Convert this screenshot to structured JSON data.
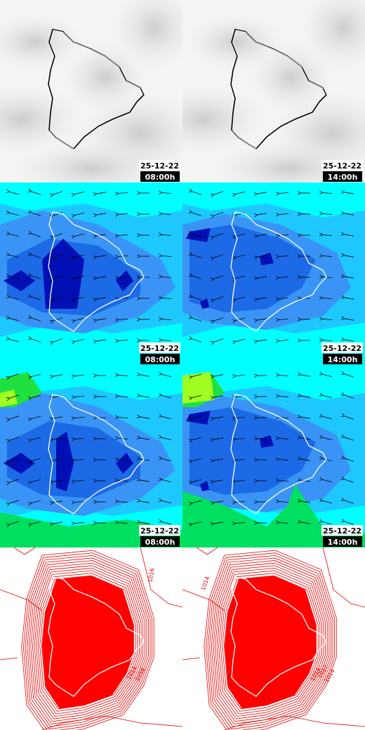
{
  "panels": [
    {
      "date": "25-12-22",
      "time": "08:00h"
    },
    {
      "date": "25-12-22",
      "time": "14:00h"
    },
    {
      "date": "25-12-22",
      "time": "08:00h"
    },
    {
      "date": "25-12-22",
      "time": "14:00h"
    },
    {
      "date": "25-12-22",
      "time": "08:00h"
    },
    {
      "date": "25-12-22",
      "time": "14:00h"
    }
  ],
  "contour_labels": [
    "1016",
    "1014",
    "1016",
    "1014",
    "1014",
    "1014",
    "1012",
    "1014",
    "1014"
  ]
}
